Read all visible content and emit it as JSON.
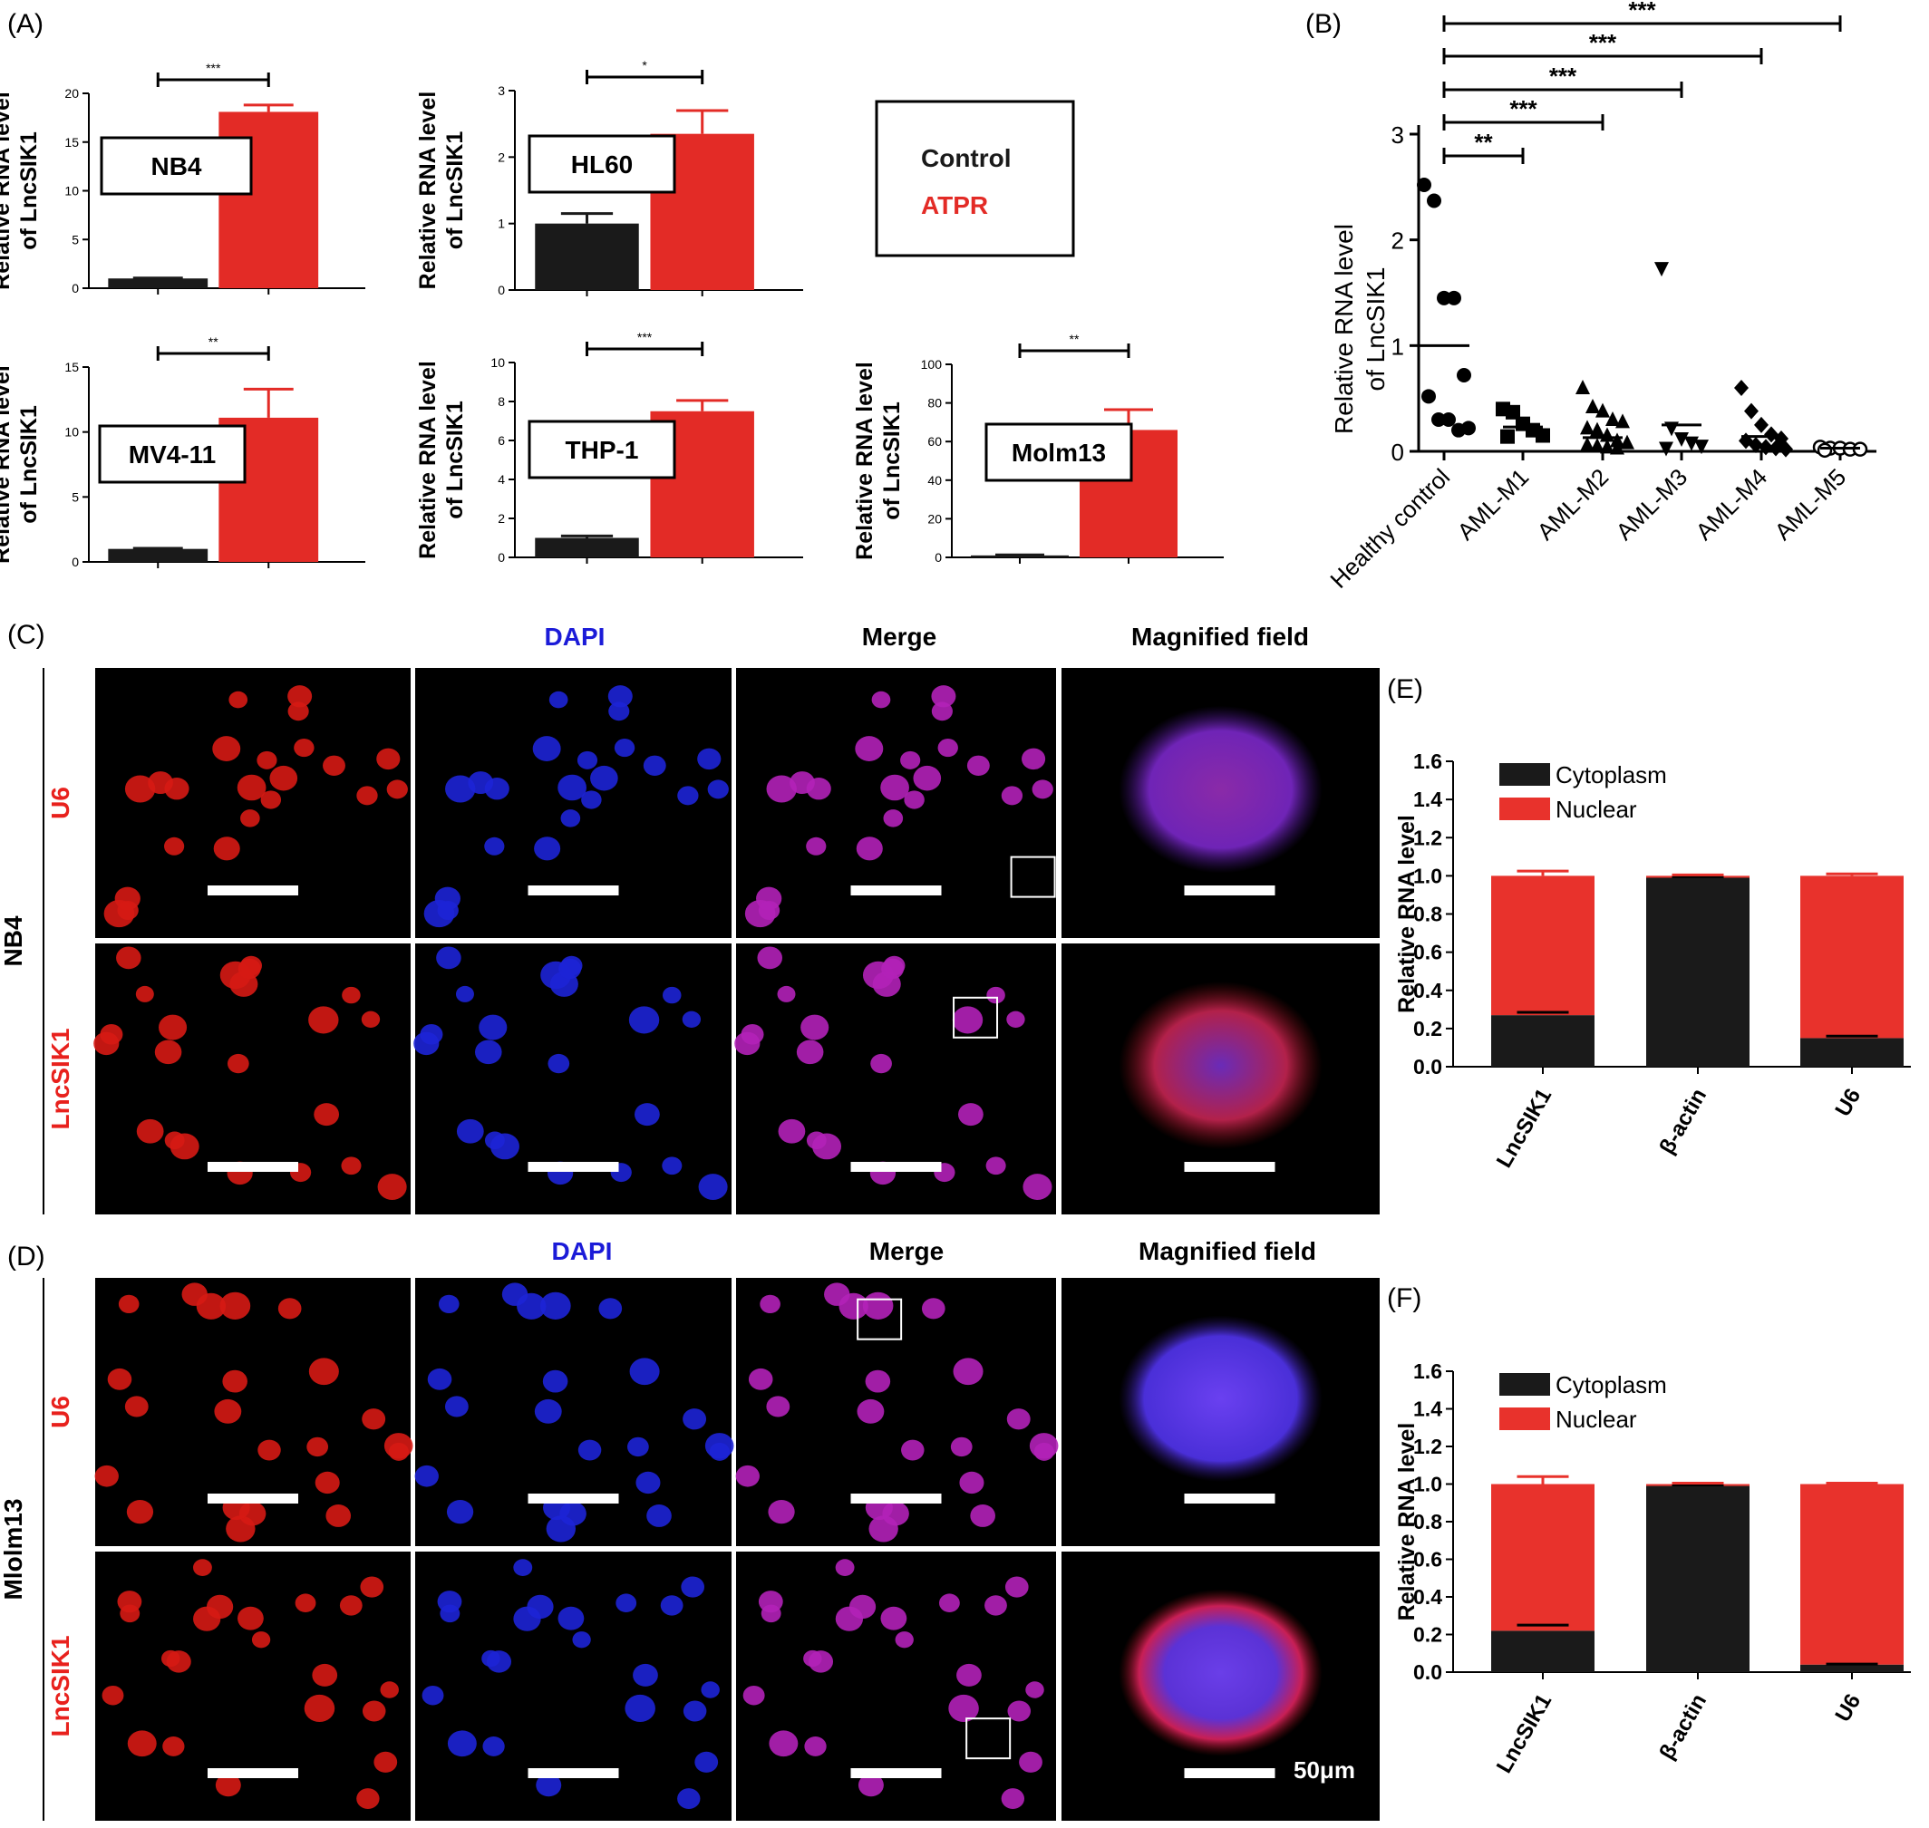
{
  "panel_labels": {
    "A": "(A)",
    "B": "(B)",
    "C": "(C)",
    "D": "(D)",
    "E": "(E)",
    "F": "(F)"
  },
  "colors": {
    "control": "#1a1a1a",
    "atpr": "#e32b26",
    "cytoplasm": "#1a1a1a",
    "nuclear": "#e8322c",
    "dapi": "#1b1bd8",
    "red_label": "#e8211d"
  },
  "legend_A": {
    "control": "Control",
    "atpr": "ATPR"
  },
  "ylabel_A": [
    "Relative RNA level",
    "of LncSIK1"
  ],
  "chart_data": [
    {
      "type": "bar",
      "panel": "A",
      "cell_line": "NB4",
      "categories": [
        "Control",
        "ATPR"
      ],
      "values": [
        1.0,
        18.1
      ],
      "errors": [
        0.05,
        0.7
      ],
      "ylim": [
        0,
        20
      ],
      "yticks": [
        0,
        5,
        10,
        15,
        20
      ],
      "significance": "***"
    },
    {
      "type": "bar",
      "panel": "A",
      "cell_line": "HL60",
      "categories": [
        "Control",
        "ATPR"
      ],
      "values": [
        1.0,
        2.35
      ],
      "errors": [
        0.15,
        0.35
      ],
      "ylim": [
        0,
        3
      ],
      "yticks": [
        0,
        1,
        2,
        3
      ],
      "significance": "*"
    },
    {
      "type": "bar",
      "panel": "A",
      "cell_line": "MV4-11",
      "categories": [
        "Control",
        "ATPR"
      ],
      "values": [
        1.0,
        11.1
      ],
      "errors": [
        0.05,
        2.2
      ],
      "ylim": [
        0,
        15
      ],
      "yticks": [
        0,
        5,
        10,
        15
      ],
      "significance": "**"
    },
    {
      "type": "bar",
      "panel": "A",
      "cell_line": "THP-1",
      "categories": [
        "Control",
        "ATPR"
      ],
      "values": [
        1.0,
        7.5
      ],
      "errors": [
        0.1,
        0.55
      ],
      "ylim": [
        0,
        10
      ],
      "yticks": [
        0,
        2,
        4,
        6,
        8,
        10
      ],
      "significance": "***"
    },
    {
      "type": "bar",
      "panel": "A",
      "cell_line": "Molm13",
      "categories": [
        "Control",
        "ATPR"
      ],
      "values": [
        1.0,
        66
      ],
      "errors": [
        0.3,
        10.5
      ],
      "ylim": [
        0,
        100
      ],
      "yticks": [
        0,
        20,
        40,
        60,
        80,
        100
      ],
      "significance": "**"
    },
    {
      "type": "scatter",
      "panel": "B",
      "ylabel": [
        "Relative RNA level",
        "of LncSIK1"
      ],
      "ylim": [
        0,
        3
      ],
      "yticks": [
        0,
        1,
        2,
        3
      ],
      "categories": [
        "Healthy control",
        "AML-M1",
        "AML-M2",
        "AML-M3",
        "AML-M4",
        "AML-M5"
      ],
      "markers": [
        "circle",
        "square",
        "triangle",
        "triangle-down",
        "diamond",
        "open-circle"
      ],
      "points": [
        [
          2.52,
          2.37,
          1.45,
          1.45,
          0.72,
          0.52,
          0.3,
          0.3,
          0.2,
          0.22
        ],
        [
          0.4,
          0.37,
          0.26,
          0.2,
          0.15,
          0.14
        ],
        [
          0.6,
          0.42,
          0.38,
          0.3,
          0.28,
          0.22,
          0.2,
          0.15,
          0.1,
          0.08,
          0.06,
          0.05,
          0.04,
          0.03
        ],
        [
          1.73,
          0.22,
          0.12,
          0.08,
          0.05,
          0.03
        ],
        [
          0.6,
          0.38,
          0.25,
          0.16,
          0.12,
          0.1,
          0.06,
          0.04,
          0.03,
          0.02
        ],
        [
          0.04,
          0.03,
          0.03,
          0.02,
          0.02,
          0.01
        ]
      ],
      "means": [
        1.0,
        0.23,
        0.13,
        0.25,
        0.14,
        0.03
      ],
      "comparisons": [
        {
          "to": "AML-M1",
          "label": "**"
        },
        {
          "to": "AML-M2",
          "label": "***"
        },
        {
          "to": "AML-M3",
          "label": "***"
        },
        {
          "to": "AML-M4",
          "label": "***"
        },
        {
          "to": "AML-M5",
          "label": "***"
        }
      ]
    },
    {
      "type": "bar",
      "panel": "E",
      "stacked": true,
      "ylabel": "Relative RNA level",
      "ylim": [
        0,
        1.6
      ],
      "yticks": [
        "0.0",
        "0.2",
        "0.4",
        "0.6",
        "0.8",
        "1.0",
        "1.2",
        "1.4",
        "1.6"
      ],
      "categories": [
        "LncSIK1",
        "β-actin",
        "U6"
      ],
      "series": [
        {
          "name": "Cytoplasm",
          "values": [
            0.27,
            0.99,
            0.15
          ],
          "errors": [
            0.015,
            0.005,
            0.01
          ]
        },
        {
          "name": "Nuclear",
          "values": [
            0.73,
            0.01,
            0.85
          ],
          "errors": [
            0.025,
            0.005,
            0.01
          ]
        }
      ]
    },
    {
      "type": "bar",
      "panel": "F",
      "stacked": true,
      "ylabel": "Relative RNA level",
      "ylim": [
        0,
        1.6
      ],
      "yticks": [
        "0.0",
        "0.2",
        "0.4",
        "0.6",
        "0.8",
        "1.0",
        "1.2",
        "1.4",
        "1.6"
      ],
      "categories": [
        "LncSIK1",
        "β-actin",
        "U6"
      ],
      "series": [
        {
          "name": "Cytoplasm",
          "values": [
            0.22,
            0.99,
            0.04
          ],
          "errors": [
            0.03,
            0.005,
            0.003
          ]
        },
        {
          "name": "Nuclear",
          "values": [
            0.78,
            0.01,
            0.96
          ],
          "errors": [
            0.04,
            0.005,
            0.005
          ]
        }
      ]
    }
  ],
  "microscopy": {
    "column_titles": [
      "DAPI",
      "Merge",
      "Magnified field"
    ],
    "C": {
      "cell_line": "NB4",
      "rows": [
        "U6",
        "LncSIK1"
      ]
    },
    "D": {
      "cell_line": "Mlolm13",
      "rows": [
        "U6",
        "LncSIK1"
      ]
    },
    "scale_label": "50μm"
  }
}
